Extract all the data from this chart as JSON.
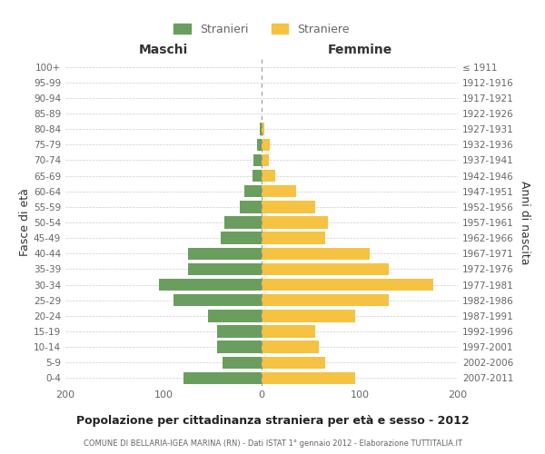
{
  "age_groups": [
    "0-4",
    "5-9",
    "10-14",
    "15-19",
    "20-24",
    "25-29",
    "30-34",
    "35-39",
    "40-44",
    "45-49",
    "50-54",
    "55-59",
    "60-64",
    "65-69",
    "70-74",
    "75-79",
    "80-84",
    "85-89",
    "90-94",
    "95-99",
    "100+"
  ],
  "birth_years": [
    "2007-2011",
    "2002-2006",
    "1997-2001",
    "1992-1996",
    "1987-1991",
    "1982-1986",
    "1977-1981",
    "1972-1976",
    "1967-1971",
    "1962-1966",
    "1957-1961",
    "1952-1956",
    "1947-1951",
    "1942-1946",
    "1937-1941",
    "1932-1936",
    "1927-1931",
    "1922-1926",
    "1917-1921",
    "1912-1916",
    "≤ 1911"
  ],
  "males": [
    80,
    40,
    45,
    45,
    55,
    90,
    105,
    75,
    75,
    42,
    38,
    22,
    18,
    9,
    8,
    5,
    2,
    0,
    0,
    0,
    0
  ],
  "females": [
    95,
    65,
    58,
    55,
    95,
    130,
    175,
    130,
    110,
    65,
    68,
    55,
    35,
    14,
    7,
    8,
    3,
    0,
    0,
    0,
    0
  ],
  "male_color": "#6a9e5f",
  "female_color": "#f5c242",
  "male_label": "Stranieri",
  "female_label": "Straniere",
  "title": "Popolazione per cittadinanza straniera per età e sesso - 2012",
  "subtitle": "COMUNE DI BELLARIA-IGEA MARINA (RN) - Dati ISTAT 1° gennaio 2012 - Elaborazione TUTTITALIA.IT",
  "xlabel_left": "Maschi",
  "xlabel_right": "Femmine",
  "ylabel_left": "Fasce di età",
  "ylabel_right": "Anni di nascita",
  "xlim": 200,
  "bg_color": "#ffffff",
  "grid_color": "#cccccc",
  "text_color": "#666666",
  "axis_label_color": "#333333",
  "title_color": "#222222",
  "subtitle_color": "#666666"
}
